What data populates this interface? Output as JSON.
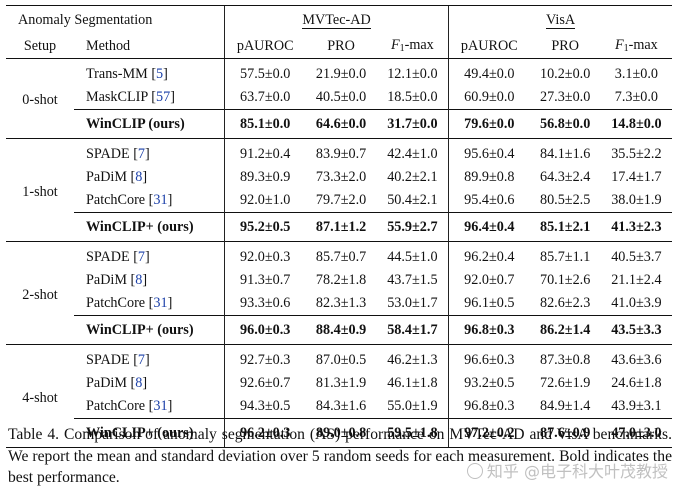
{
  "table": {
    "corner_label": "Anomaly Segmentation",
    "datasets": [
      "MVTec-AD",
      "VisA"
    ],
    "col_setup": "Setup",
    "col_method": "Method",
    "metrics": [
      "pAUROC",
      "PRO",
      "F1-max",
      "pAUROC",
      "PRO",
      "F1-max"
    ],
    "metric_base_f1": "F",
    "metric_sub_f1": "1",
    "metric_suffix_f1": "-max",
    "groups": [
      {
        "setup": "0-shot",
        "setup_bold": true,
        "rows": [
          {
            "method": "Trans-MM",
            "cite": "5",
            "values": [
              "57.5±0.0",
              "21.9±0.0",
              "12.1±0.0",
              "49.4±0.0",
              "10.2±0.0",
              "3.1±0.0"
            ]
          },
          {
            "method": "MaskCLIP",
            "cite": "57",
            "values": [
              "63.7±0.0",
              "40.5±0.0",
              "18.5±0.0",
              "60.9±0.0",
              "27.3±0.0",
              "7.3±0.0"
            ]
          }
        ],
        "ours": {
          "method": "WinCLIP (ours)",
          "values": [
            "85.1±0.0",
            "64.6±0.0",
            "31.7±0.0",
            "79.6±0.0",
            "56.8±0.0",
            "14.8±0.0"
          ]
        }
      },
      {
        "setup": "1-shot",
        "setup_bold": false,
        "rows": [
          {
            "method": "SPADE",
            "cite": "7",
            "values": [
              "91.2±0.4",
              "83.9±0.7",
              "42.4±1.0",
              "95.6±0.4",
              "84.1±1.6",
              "35.5±2.2"
            ]
          },
          {
            "method": "PaDiM",
            "cite": "8",
            "values": [
              "89.3±0.9",
              "73.3±2.0",
              "40.2±2.1",
              "89.9±0.8",
              "64.3±2.4",
              "17.4±1.7"
            ]
          },
          {
            "method": "PatchCore",
            "cite": "31",
            "values": [
              "92.0±1.0",
              "79.7±2.0",
              "50.4±2.1",
              "95.4±0.6",
              "80.5±2.5",
              "38.0±1.9"
            ]
          }
        ],
        "ours": {
          "method": "WinCLIP+ (ours)",
          "values": [
            "95.2±0.5",
            "87.1±1.2",
            "55.9±2.7",
            "96.4±0.4",
            "85.1±2.1",
            "41.3±2.3"
          ]
        }
      },
      {
        "setup": "2-shot",
        "setup_bold": false,
        "rows": [
          {
            "method": "SPADE",
            "cite": "7",
            "values": [
              "92.0±0.3",
              "85.7±0.7",
              "44.5±1.0",
              "96.2±0.4",
              "85.7±1.1",
              "40.5±3.7"
            ]
          },
          {
            "method": "PaDiM",
            "cite": "8",
            "values": [
              "91.3±0.7",
              "78.2±1.8",
              "43.7±1.5",
              "92.0±0.7",
              "70.1±2.6",
              "21.1±2.4"
            ]
          },
          {
            "method": "PatchCore",
            "cite": "31",
            "values": [
              "93.3±0.6",
              "82.3±1.3",
              "53.0±1.7",
              "96.1±0.5",
              "82.6±2.3",
              "41.0±3.9"
            ]
          }
        ],
        "ours": {
          "method": "WinCLIP+ (ours)",
          "values": [
            "96.0±0.3",
            "88.4±0.9",
            "58.4±1.7",
            "96.8±0.3",
            "86.2±1.4",
            "43.5±3.3"
          ]
        }
      },
      {
        "setup": "4-shot",
        "setup_bold": false,
        "rows": [
          {
            "method": "SPADE",
            "cite": "7",
            "values": [
              "92.7±0.3",
              "87.0±0.5",
              "46.2±1.3",
              "96.6±0.3",
              "87.3±0.8",
              "43.6±3.6"
            ]
          },
          {
            "method": "PaDiM",
            "cite": "8",
            "values": [
              "92.6±0.7",
              "81.3±1.9",
              "46.1±1.8",
              "93.2±0.5",
              "72.6±1.9",
              "24.6±1.8"
            ]
          },
          {
            "method": "PatchCore",
            "cite": "31",
            "values": [
              "94.3±0.5",
              "84.3±1.6",
              "55.0±1.9",
              "96.8±0.3",
              "84.9±1.4",
              "43.9±3.1"
            ]
          }
        ],
        "ours": {
          "method": "WinCLIP+ (ours)",
          "values": [
            "96.2±0.3",
            "89.0±0.8",
            "59.5±1.8",
            "97.2±0.2",
            "87.6±0.9",
            "47.0±3.0"
          ]
        }
      }
    ]
  },
  "caption": "Table 4. Comparison of anomaly segmentation (AS) performance on MVTec-AD and VisA benchmarks. We report the mean and standard deviation over 5 random seeds for each measurement. Bold indicates the best performance.",
  "watermark": "知乎 @电子科大叶茂教授"
}
